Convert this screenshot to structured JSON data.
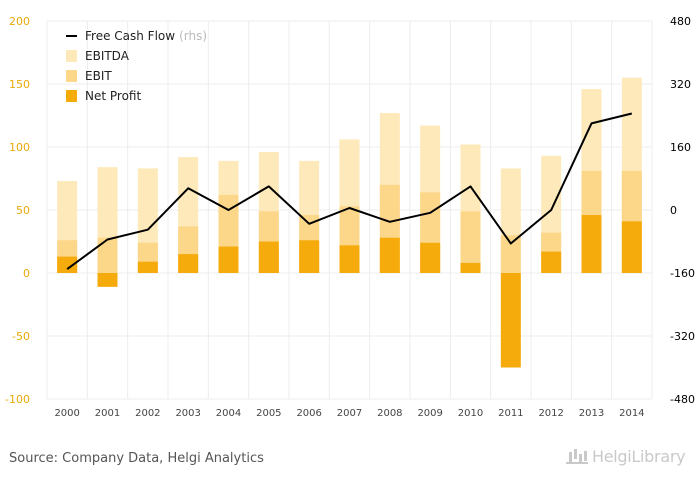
{
  "chart_data": {
    "type": "bar",
    "categories": [
      "2000",
      "2001",
      "2002",
      "2003",
      "2004",
      "2005",
      "2006",
      "2007",
      "2008",
      "2009",
      "2010",
      "2011",
      "2012",
      "2013",
      "2014"
    ],
    "series": [
      {
        "name": "EBITDA",
        "kind": "bar",
        "axis": "left",
        "color": "#fde9b9",
        "values": [
          73,
          84,
          83,
          92,
          89,
          96,
          89,
          106,
          127,
          117,
          102,
          83,
          93,
          146,
          155
        ]
      },
      {
        "name": "EBIT",
        "kind": "bar",
        "axis": "left",
        "color": "#fcd78a",
        "values": [
          26,
          28,
          24,
          37,
          62,
          49,
          46,
          53,
          70,
          64,
          49,
          30,
          32,
          81,
          81
        ]
      },
      {
        "name": "Net Profit",
        "kind": "bar",
        "axis": "left",
        "color": "#f6ab0c",
        "values": [
          13,
          -11,
          9,
          15,
          21,
          25,
          26,
          22,
          28,
          24,
          8,
          -75,
          17,
          46,
          41
        ]
      },
      {
        "name": "Free Cash Flow",
        "kind": "line",
        "axis": "right",
        "color": "#000000",
        "values": [
          -150,
          -75,
          -50,
          55,
          0,
          60,
          -35,
          5,
          -30,
          -7,
          60,
          -85,
          0,
          220,
          245
        ]
      }
    ],
    "left_axis": {
      "min": -100,
      "max": 200,
      "ticks": [
        200,
        150,
        100,
        50,
        0,
        -50,
        -100
      ],
      "color": "#e8a90a"
    },
    "right_axis": {
      "min": -480,
      "max": 480,
      "ticks": [
        480,
        320,
        160,
        0,
        -160,
        -320,
        -480
      ],
      "color": "#000000"
    },
    "legend": {
      "placement": "top-left",
      "items": [
        {
          "label": "Free Cash Flow",
          "suffix": "(rhs)",
          "type": "line",
          "color": "#000000"
        },
        {
          "label": "EBITDA",
          "type": "box",
          "color": "#fde9b9"
        },
        {
          "label": "EBIT",
          "type": "box",
          "color": "#fcd78a"
        },
        {
          "label": "Net Profit",
          "type": "box",
          "color": "#f6ab0c"
        }
      ]
    },
    "grid": true
  },
  "footer": {
    "source": "Source: Company Data, Helgi Analytics",
    "logo": "HelgiLibrary"
  }
}
